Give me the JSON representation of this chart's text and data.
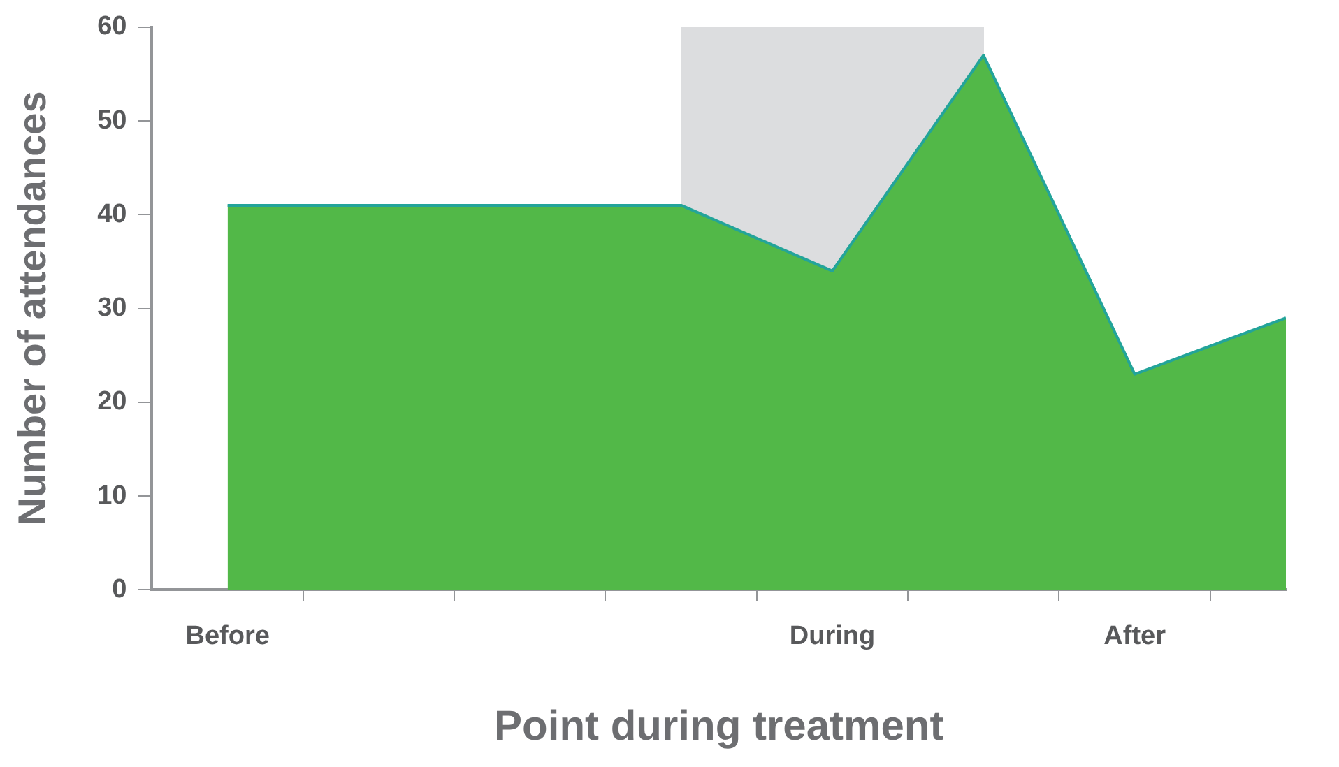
{
  "chart_data": {
    "type": "area",
    "xlabel": "Point during treatment",
    "ylabel": "Number of attendances",
    "categories": [
      "Before",
      null,
      null,
      null,
      "During",
      null,
      "After",
      null
    ],
    "series": [
      {
        "color": "#52b848",
        "values": [
          41,
          41,
          41,
          41,
          34,
          57,
          23,
          29
        ]
      }
    ],
    "ylim": [
      0,
      60
    ],
    "yticks": [
      0,
      10,
      20,
      30,
      40,
      50,
      60
    ],
    "grid": false,
    "legend": false,
    "marker": "none"
  }
}
